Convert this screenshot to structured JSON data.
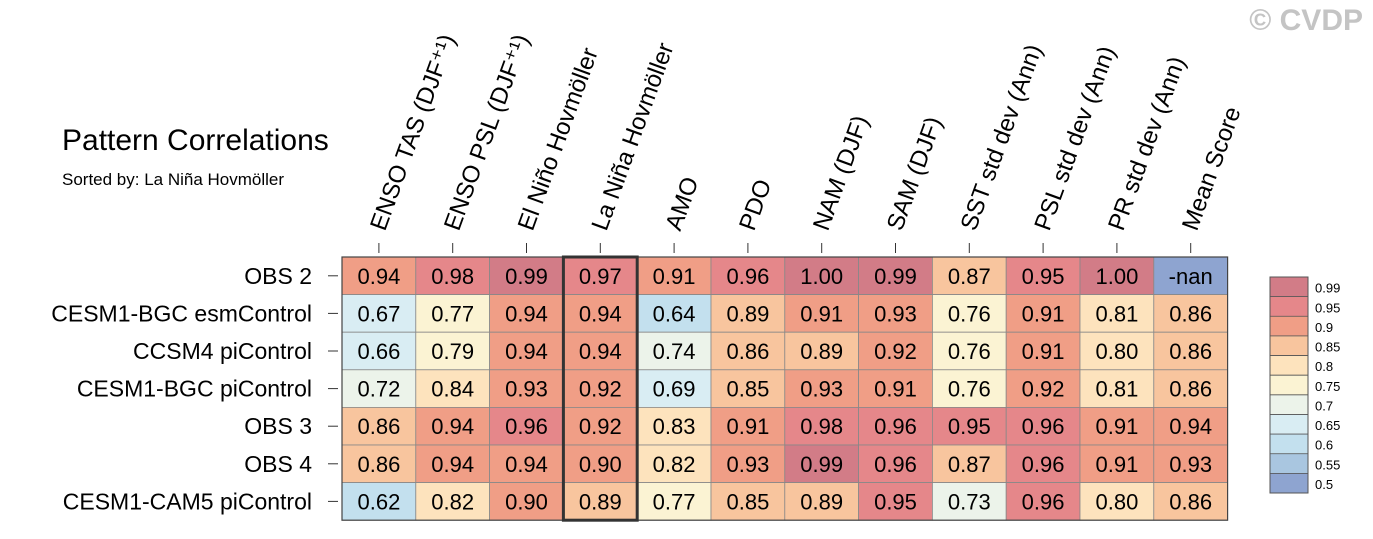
{
  "header": {
    "title": "Pattern Correlations",
    "subtitle": "Sorted by: La Niña Hovmöller",
    "watermark": "© CVDP"
  },
  "chart_data": {
    "type": "heatmap",
    "title": "Pattern Correlations",
    "subtitle": "Sorted by: La Niña Hovmöller",
    "columns": [
      "ENSO TAS (DJF⁺¹)",
      "ENSO PSL (DJF⁺¹)",
      "El Niño Hovmöller",
      "La Niña Hovmöller",
      "AMO",
      "PDO",
      "NAM (DJF)",
      "SAM (DJF)",
      "SST std dev (Ann)",
      "PSL std dev (Ann)",
      "PR std dev (Ann)",
      "Mean Score"
    ],
    "rows": [
      "OBS 2",
      "CESM1-BGC esmControl",
      "CCSM4 piControl",
      "CESM1-BGC piControl",
      "OBS 3",
      "OBS 4",
      "CESM1-CAM5 piControl"
    ],
    "values": [
      [
        "0.94",
        "0.98",
        "0.99",
        "0.97",
        "0.91",
        "0.96",
        "1.00",
        "0.99",
        "0.87",
        "0.95",
        "1.00",
        "-nan"
      ],
      [
        "0.67",
        "0.77",
        "0.94",
        "0.94",
        "0.64",
        "0.89",
        "0.91",
        "0.93",
        "0.76",
        "0.91",
        "0.81",
        "0.86"
      ],
      [
        "0.66",
        "0.79",
        "0.94",
        "0.94",
        "0.74",
        "0.86",
        "0.89",
        "0.92",
        "0.76",
        "0.91",
        "0.80",
        "0.86"
      ],
      [
        "0.72",
        "0.84",
        "0.93",
        "0.92",
        "0.69",
        "0.85",
        "0.93",
        "0.91",
        "0.76",
        "0.92",
        "0.81",
        "0.86"
      ],
      [
        "0.86",
        "0.94",
        "0.96",
        "0.92",
        "0.83",
        "0.91",
        "0.98",
        "0.96",
        "0.95",
        "0.96",
        "0.91",
        "0.94"
      ],
      [
        "0.86",
        "0.94",
        "0.94",
        "0.90",
        "0.82",
        "0.93",
        "0.99",
        "0.96",
        "0.87",
        "0.96",
        "0.91",
        "0.93"
      ],
      [
        "0.62",
        "0.82",
        "0.90",
        "0.89",
        "0.77",
        "0.85",
        "0.89",
        "0.95",
        "0.73",
        "0.96",
        "0.80",
        "0.86"
      ]
    ],
    "highlight_column": "La Niña Hovmöller",
    "colorbar": {
      "labels": [
        "0.99",
        "0.95",
        "0.9",
        "0.85",
        "0.8",
        "0.75",
        "0.7",
        "0.65",
        "0.6",
        "0.55",
        "0.5"
      ],
      "colors": [
        "#d27c87",
        "#e5878a",
        "#f09e86",
        "#f8c59e",
        "#fde3bd",
        "#fbf3d3",
        "#ecf3ea",
        "#d9edf3",
        "#c3e0ee",
        "#a9c6e0",
        "#8ea4d0"
      ]
    },
    "nan_color": "#8ea4d0"
  }
}
